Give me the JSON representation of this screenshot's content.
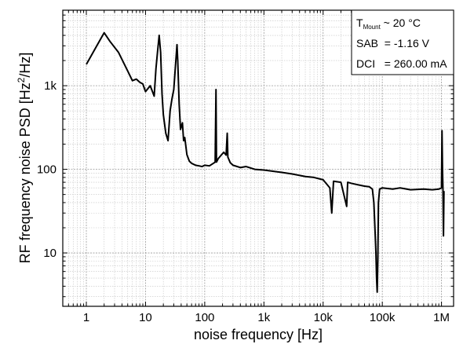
{
  "chart_data": {
    "type": "line",
    "xscale": "log",
    "yscale": "log",
    "xlim": [
      0.4,
      1600000
    ],
    "ylim": [
      2.3,
      8000
    ],
    "grid": true,
    "xlabel": "noise frequency [Hz]",
    "ylabel": {
      "main": "RF frequency noise PSD [Hz",
      "sup": "2",
      "tail": "/Hz]"
    },
    "x_ticks": [
      {
        "value": 1,
        "label": "1"
      },
      {
        "value": 10,
        "label": "10"
      },
      {
        "value": 100,
        "label": "100"
      },
      {
        "value": 1000,
        "label": "1k"
      },
      {
        "value": 10000,
        "label": "10k"
      },
      {
        "value": 100000,
        "label": "100k"
      },
      {
        "value": 1000000,
        "label": "1M"
      }
    ],
    "y_ticks": [
      {
        "value": 10,
        "label": "10"
      },
      {
        "value": 100,
        "label": "100"
      },
      {
        "value": 1000,
        "label": "1k"
      }
    ],
    "annotation": {
      "lines": [
        {
          "pre": "T",
          "sub": "Mount",
          "post": " ~ 20 °C"
        },
        {
          "pre": "SAB  = -1.16 V",
          "sub": "",
          "post": ""
        },
        {
          "pre": "DCI   = 260.00 mA",
          "sub": "",
          "post": ""
        }
      ],
      "placement": "top-right"
    },
    "series": [
      {
        "color": "#000000",
        "points": [
          [
            1,
            1800
          ],
          [
            1.5,
            3000
          ],
          [
            2,
            4300
          ],
          [
            2.5,
            3400
          ],
          [
            3.5,
            2500
          ],
          [
            5,
            1500
          ],
          [
            6,
            1150
          ],
          [
            7,
            1200
          ],
          [
            8,
            1100
          ],
          [
            9,
            1050
          ],
          [
            10,
            850
          ],
          [
            12,
            1000
          ],
          [
            14,
            750
          ],
          [
            15,
            1600
          ],
          [
            16,
            2600
          ],
          [
            17,
            4000
          ],
          [
            18,
            2500
          ],
          [
            19,
            800
          ],
          [
            20,
            450
          ],
          [
            22,
            270
          ],
          [
            24,
            220
          ],
          [
            26,
            500
          ],
          [
            28,
            700
          ],
          [
            30,
            900
          ],
          [
            32,
            1700
          ],
          [
            34,
            3100
          ],
          [
            35,
            2000
          ],
          [
            37,
            600
          ],
          [
            39,
            300
          ],
          [
            42,
            360
          ],
          [
            44,
            220
          ],
          [
            46,
            240
          ],
          [
            50,
            150
          ],
          [
            55,
            125
          ],
          [
            60,
            118
          ],
          [
            70,
            112
          ],
          [
            80,
            110
          ],
          [
            90,
            108
          ],
          [
            100,
            112
          ],
          [
            120,
            110
          ],
          [
            140,
            118
          ],
          [
            150,
            122
          ],
          [
            155,
            900
          ],
          [
            158,
            122
          ],
          [
            170,
            135
          ],
          [
            190,
            148
          ],
          [
            210,
            160
          ],
          [
            230,
            148
          ],
          [
            240,
            270
          ],
          [
            246,
            140
          ],
          [
            270,
            120
          ],
          [
            300,
            112
          ],
          [
            400,
            105
          ],
          [
            500,
            108
          ],
          [
            700,
            100
          ],
          [
            1000,
            98
          ],
          [
            2000,
            92
          ],
          [
            3000,
            88
          ],
          [
            5000,
            82
          ],
          [
            7000,
            80
          ],
          [
            10000,
            75
          ],
          [
            13000,
            60
          ],
          [
            14000,
            30
          ],
          [
            15000,
            72
          ],
          [
            20000,
            70
          ],
          [
            25000,
            36
          ],
          [
            26000,
            70
          ],
          [
            30000,
            68
          ],
          [
            40000,
            65
          ],
          [
            50000,
            63
          ],
          [
            60000,
            62
          ],
          [
            68000,
            58
          ],
          [
            72000,
            40
          ],
          [
            75000,
            20
          ],
          [
            78000,
            10
          ],
          [
            80000,
            5
          ],
          [
            82000,
            3.4
          ],
          [
            84000,
            8
          ],
          [
            86000,
            40
          ],
          [
            90000,
            58
          ],
          [
            100000,
            60
          ],
          [
            150000,
            58
          ],
          [
            200000,
            60
          ],
          [
            300000,
            57
          ],
          [
            500000,
            58
          ],
          [
            700000,
            57
          ],
          [
            900000,
            58
          ],
          [
            1000000,
            60
          ],
          [
            1020000,
            290
          ],
          [
            1040000,
            100
          ],
          [
            1060000,
            55
          ],
          [
            1080000,
            16
          ],
          [
            1100000,
            55
          ]
        ]
      }
    ]
  }
}
